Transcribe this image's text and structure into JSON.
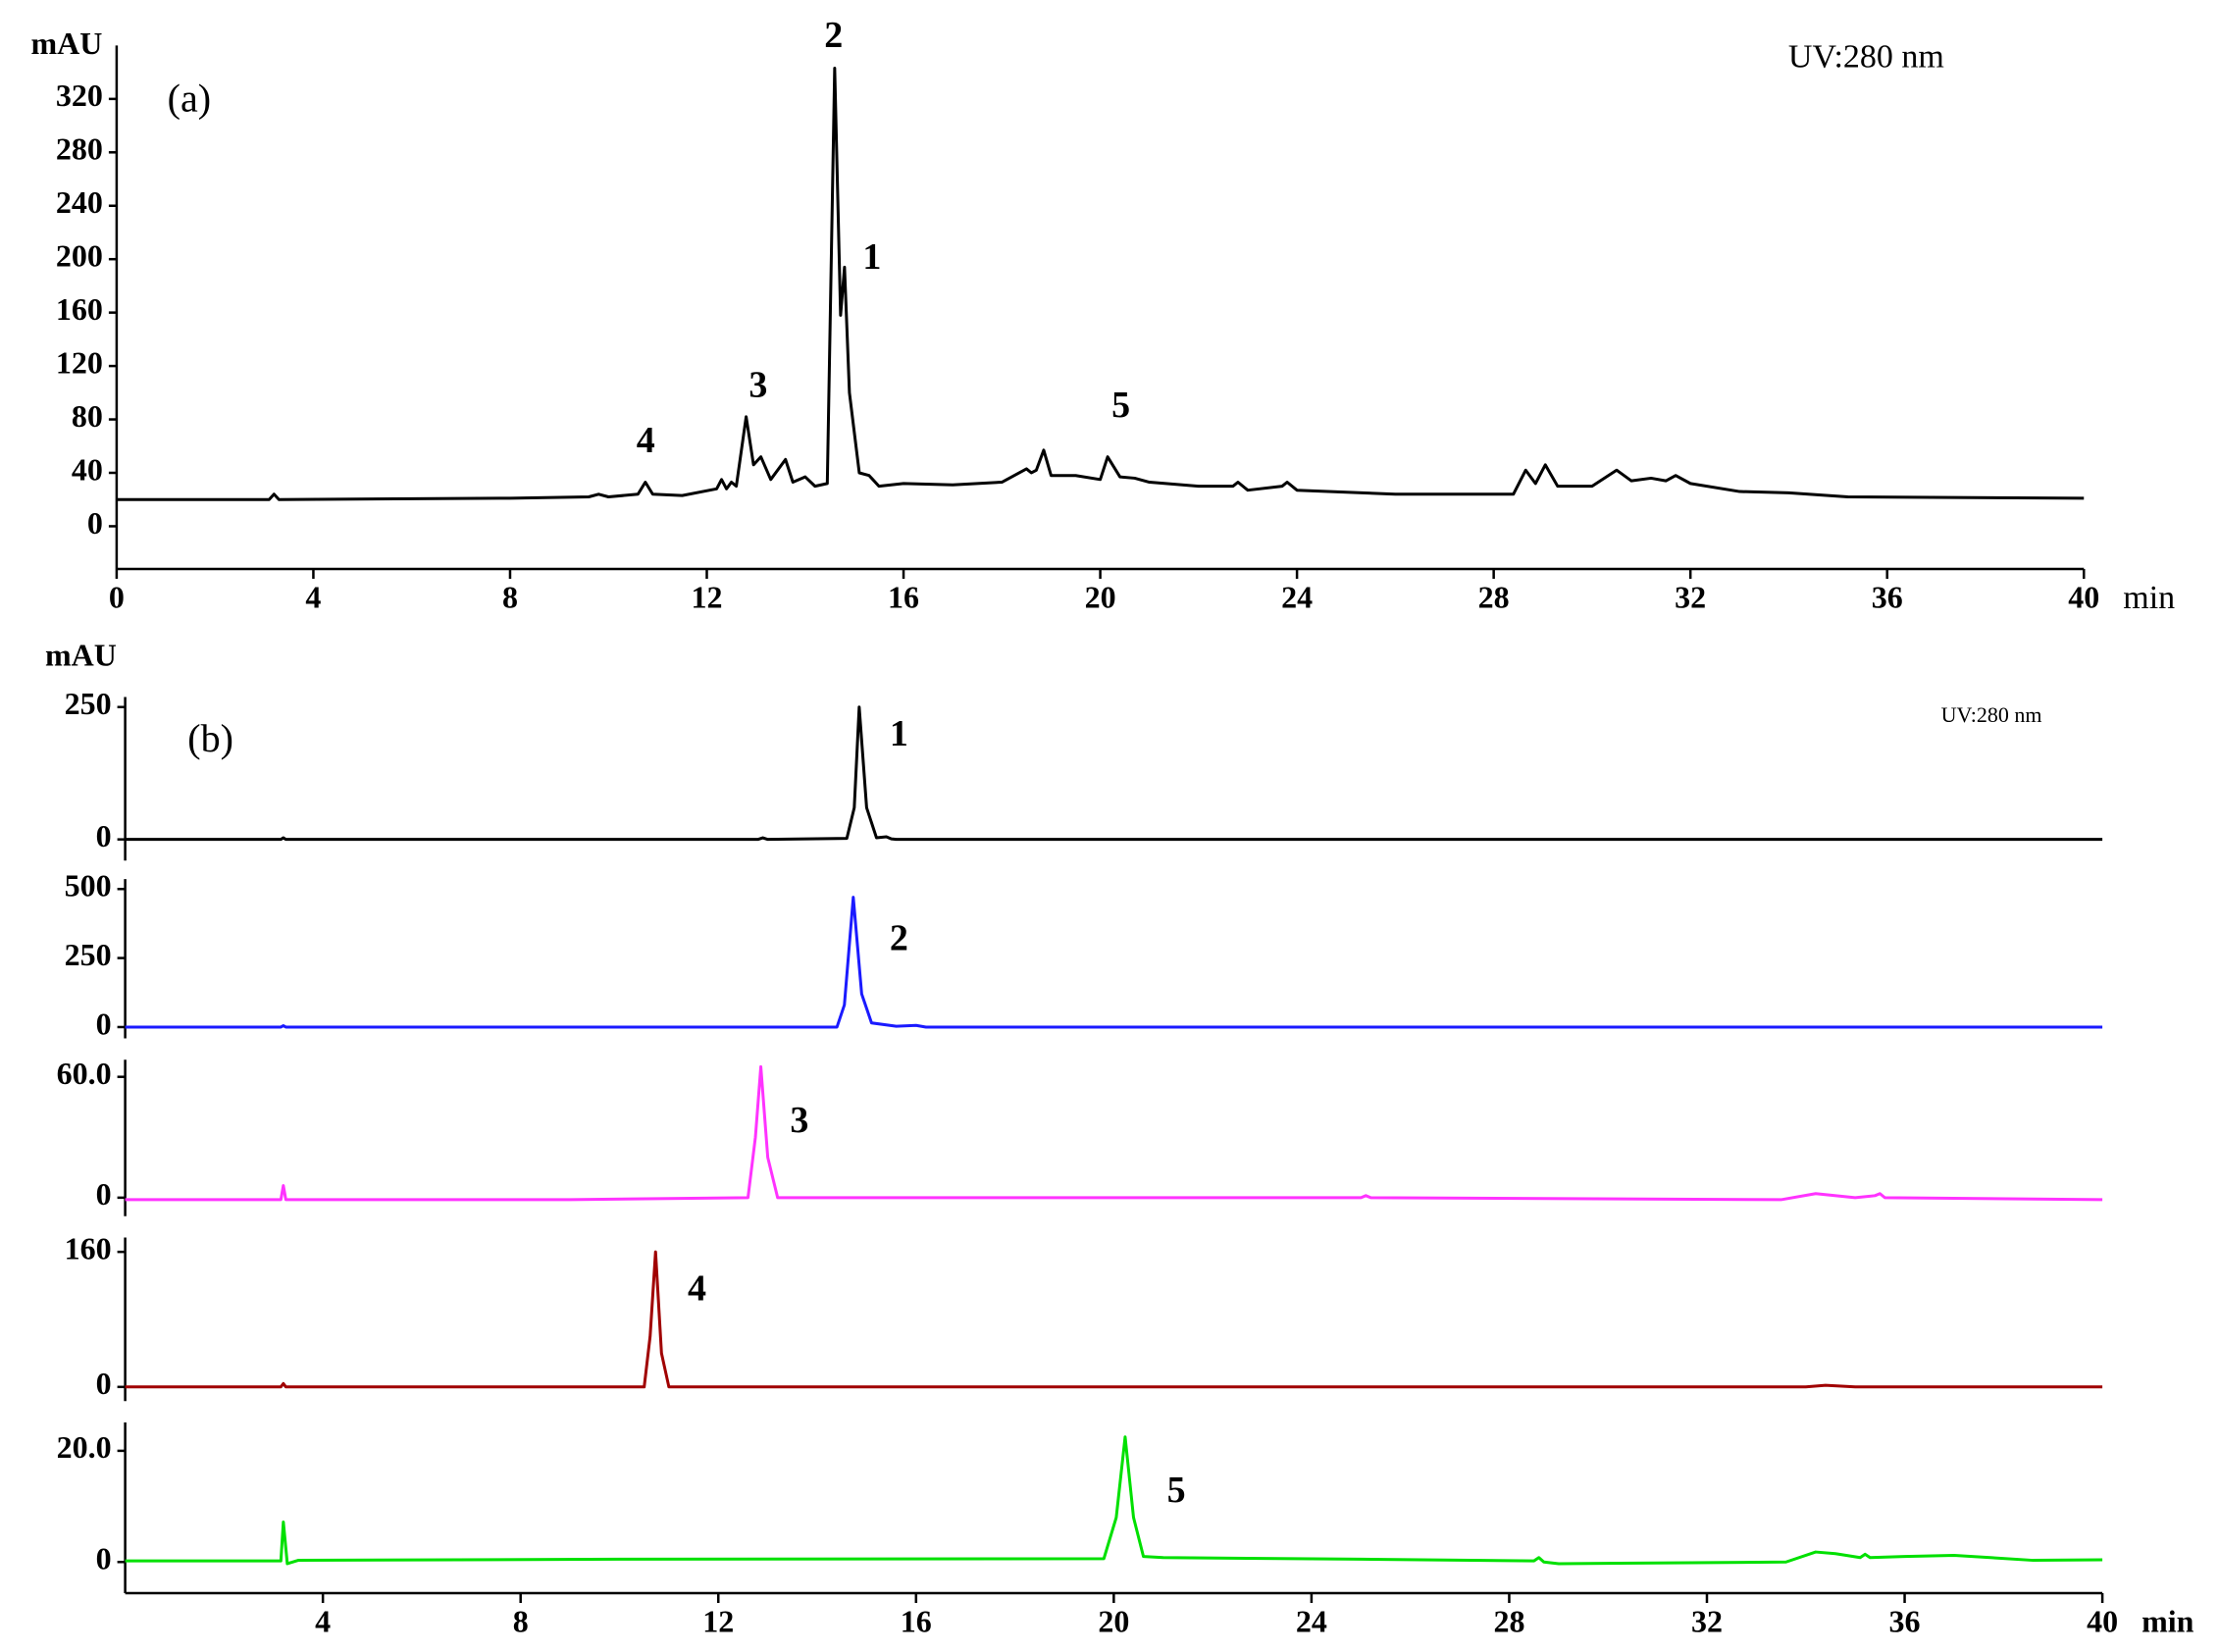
{
  "chart_data": [
    {
      "type": "line",
      "ylabel": "mAU",
      "xlabel": "min",
      "panel_label": "(a)",
      "note": "UV:280 nm",
      "annotations": [
        "2",
        "1",
        "3",
        "4",
        "5"
      ],
      "xlim": [
        0,
        40
      ],
      "xticks": [
        0,
        4,
        8,
        12,
        16,
        20,
        24,
        28,
        32,
        36,
        40
      ],
      "ylim": [
        -32,
        360
      ],
      "yticks": [
        0,
        40,
        80,
        120,
        160,
        200,
        240,
        280,
        320
      ],
      "color": "#000000",
      "x": [
        0,
        3.1,
        3.2,
        3.3,
        8,
        9.6,
        9.8,
        10,
        10.6,
        10.75,
        10.9,
        11.5,
        12.2,
        12.3,
        12.4,
        12.5,
        12.6,
        12.8,
        12.95,
        13.1,
        13.3,
        13.6,
        13.75,
        14,
        14.2,
        14.45,
        14.6,
        14.72,
        14.8,
        14.9,
        15.1,
        15.3,
        15.5,
        16,
        17,
        18,
        18.5,
        18.6,
        18.7,
        18.85,
        19,
        19.5,
        20,
        20.15,
        20.4,
        20.7,
        21,
        22,
        22.7,
        22.8,
        23,
        23.7,
        23.8,
        24,
        26,
        28.4,
        28.65,
        28.85,
        29.05,
        29.3,
        30,
        30.5,
        30.8,
        31.2,
        31.5,
        31.7,
        32,
        33,
        34,
        35.2,
        40
      ],
      "values": [
        20,
        20,
        24,
        20,
        21,
        22,
        24,
        22,
        24,
        33,
        24,
        23,
        28,
        35,
        28,
        33,
        30,
        82,
        46,
        52,
        35,
        50,
        33,
        37,
        30,
        32,
        343,
        158,
        194,
        100,
        40,
        38,
        30,
        32,
        31,
        33,
        43,
        40,
        42,
        57,
        38,
        38,
        35,
        52,
        37,
        36,
        33,
        30,
        30,
        33,
        27,
        30,
        33,
        27,
        24,
        24,
        42,
        32,
        46,
        30,
        30,
        42,
        34,
        36,
        34,
        38,
        32,
        26,
        25,
        22,
        21
      ]
    },
    {
      "type": "line",
      "ylabel": "mAU",
      "panel_label": "(b)",
      "note": "UV:280 nm",
      "annotations": [
        "1"
      ],
      "xlim": [
        0,
        40
      ],
      "ylim": [
        -40,
        269
      ],
      "yticks": [
        0,
        250
      ],
      "color": "#000000",
      "x": [
        0,
        3.15,
        3.2,
        3.25,
        12.8,
        12.9,
        13,
        14.6,
        14.75,
        14.85,
        15.0,
        15.2,
        15.4,
        15.5,
        15.6,
        40
      ],
      "values": [
        0,
        0,
        3,
        0,
        0,
        3,
        0,
        2,
        60,
        250,
        60,
        3,
        5,
        1,
        0,
        0
      ]
    },
    {
      "type": "line",
      "annotations": [
        "2"
      ],
      "xlim": [
        0,
        40
      ],
      "ylim": [
        -41,
        536
      ],
      "yticks": [
        0,
        250,
        500
      ],
      "color": "#1a1aff",
      "x": [
        0,
        3.15,
        3.2,
        3.25,
        14.4,
        14.55,
        14.73,
        14.9,
        15.1,
        15.6,
        16,
        16.2,
        40
      ],
      "values": [
        0,
        0,
        5,
        0,
        0,
        80,
        470,
        120,
        15,
        3,
        6,
        0,
        0
      ]
    },
    {
      "type": "line",
      "annotations": [
        "3"
      ],
      "xlim": [
        0,
        40
      ],
      "ylim": [
        -9.2,
        68.5
      ],
      "yticks": [
        0,
        {
          "value": 60,
          "label": "60.0"
        }
      ],
      "color": "#ff33ff",
      "x": [
        0,
        3.15,
        3.2,
        3.25,
        9,
        12.6,
        12.75,
        12.86,
        13,
        13.2,
        25,
        25.1,
        25.2,
        33.5,
        34.2,
        35,
        35.4,
        35.5,
        35.6,
        40
      ],
      "values": [
        -1,
        -1,
        6,
        -1,
        -1,
        0,
        30,
        65,
        20,
        0,
        0,
        1,
        0,
        -1,
        2,
        0,
        1,
        2,
        0,
        -1
      ]
    },
    {
      "type": "line",
      "annotations": [
        "4"
      ],
      "xlim": [
        0,
        40
      ],
      "ylim": [
        -16.8,
        177
      ],
      "yticks": [
        0,
        160
      ],
      "color": "#a00000",
      "x": [
        0,
        3.15,
        3.2,
        3.25,
        10.5,
        10.62,
        10.73,
        10.85,
        11,
        34,
        34.4,
        35,
        40
      ],
      "values": [
        0,
        0,
        4,
        0,
        0,
        60,
        160,
        40,
        0,
        0,
        2,
        0,
        0
      ]
    },
    {
      "type": "line",
      "annotations": [
        "5"
      ],
      "xlabel": "min",
      "xlim": [
        0,
        40
      ],
      "xticks": [
        4,
        8,
        12,
        16,
        20,
        24,
        28,
        32,
        36,
        40
      ],
      "ylim": [
        -5.6,
        25.1
      ],
      "yticks": [
        0,
        {
          "value": 20,
          "label": "20.0"
        }
      ],
      "color": "#00e000",
      "x": [
        0,
        3.15,
        3.2,
        3.28,
        3.5,
        10,
        19.8,
        20.05,
        20.23,
        20.4,
        20.6,
        21,
        25,
        28.5,
        28.6,
        28.7,
        29,
        33.6,
        34.2,
        34.6,
        35.1,
        35.2,
        35.3,
        36,
        37,
        38.6,
        40
      ],
      "values": [
        0.2,
        0.2,
        7.2,
        -0.3,
        0.3,
        0.5,
        0.6,
        8,
        22.5,
        8,
        1,
        0.8,
        0.5,
        0.2,
        0.8,
        0,
        -0.3,
        0,
        1.8,
        1.5,
        0.8,
        1.4,
        0.8,
        1,
        1.2,
        0.3,
        0.4
      ]
    }
  ]
}
